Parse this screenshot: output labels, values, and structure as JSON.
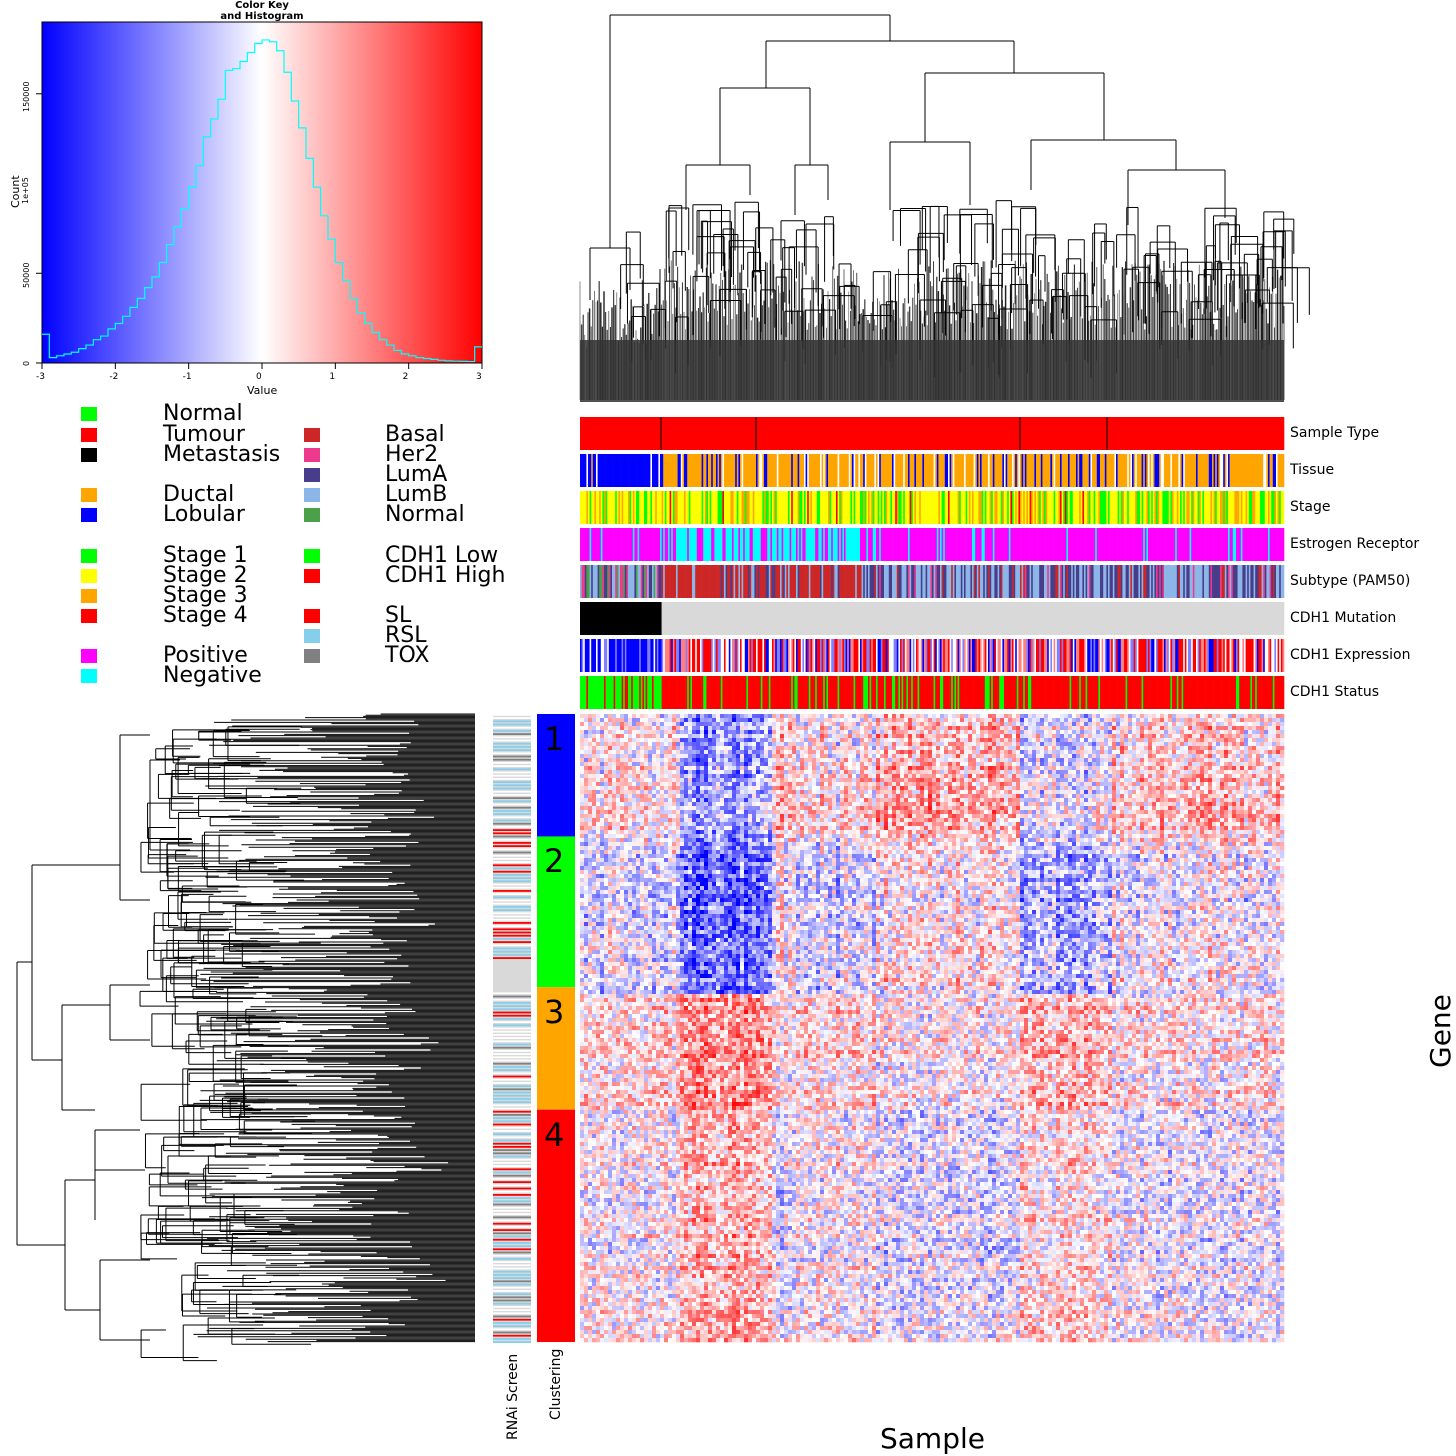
{
  "color_key": {
    "title_line1": "Color Key",
    "title_line2": "and Histogram",
    "xlabel": "Value",
    "ylabel_line1": "Count",
    "ylabel_line2": "1e+05",
    "x_ticks": [
      "-3",
      "-2",
      "-1",
      "0",
      "1",
      "2",
      "3"
    ],
    "y_ticks": [
      "0",
      "50000",
      "150000"
    ],
    "colors": {
      "low": "#0000ff",
      "mid": "#ffffff",
      "high": "#ff0000",
      "hist_line": "#00ffff"
    }
  },
  "legend": {
    "column1": [
      {
        "label": "Normal",
        "color": "#00ff00"
      },
      {
        "label": "Tumour",
        "color": "#ff0000"
      },
      {
        "label": "Metastasis",
        "color": "#000000"
      },
      {
        "label": "Ductal",
        "color": "#ffa500"
      },
      {
        "label": "Lobular",
        "color": "#0000ff"
      },
      {
        "label": "Stage 1",
        "color": "#00ff00"
      },
      {
        "label": "Stage 2",
        "color": "#ffff00"
      },
      {
        "label": "Stage 3",
        "color": "#ffa500"
      },
      {
        "label": "Stage 4",
        "color": "#ff0000"
      },
      {
        "label": "Positive",
        "color": "#ff00ff"
      },
      {
        "label": "Negative",
        "color": "#00ffff"
      }
    ],
    "column2": [
      {
        "label": "Basal",
        "color": "#cd2626"
      },
      {
        "label": "Her2",
        "color": "#ee3a8c"
      },
      {
        "label": "LumA",
        "color": "#483d8b"
      },
      {
        "label": "LumB",
        "color": "#8db6e8"
      },
      {
        "label": "Normal",
        "color": "#4aa14a"
      },
      {
        "label": "CDH1 Low",
        "color": "#00ff00"
      },
      {
        "label": "CDH1 High",
        "color": "#ff0000"
      },
      {
        "label": "SL",
        "color": "#ff0000"
      },
      {
        "label": "RSL",
        "color": "#87ceeb"
      },
      {
        "label": "TOX",
        "color": "#808080"
      }
    ]
  },
  "tracks": [
    {
      "label": "Sample Type"
    },
    {
      "label": "Tissue"
    },
    {
      "label": "Stage"
    },
    {
      "label": "Estrogen Receptor"
    },
    {
      "label": "Subtype (PAM50)"
    },
    {
      "label": "CDH1 Mutation"
    },
    {
      "label": "CDH1 Expression"
    },
    {
      "label": "CDH1 Status"
    }
  ],
  "side_labels": {
    "rnai": "RNAi Screen",
    "clustering": "Clustering",
    "sample": "Sample",
    "gene": "Gene"
  },
  "clusters": [
    {
      "label": "1",
      "color": "#0000ff",
      "fraction": 0.195
    },
    {
      "label": "2",
      "color": "#00ff00",
      "fraction": 0.24
    },
    {
      "label": "3",
      "color": "#ffa500",
      "fraction": 0.195
    },
    {
      "label": "4",
      "color": "#ff0000",
      "fraction": 0.37
    }
  ],
  "chart_data": {
    "type": "heatmap",
    "title": "",
    "xlabel": "Sample",
    "ylabel": "Gene",
    "color_scale": {
      "min": -3,
      "max": 3,
      "low": "#0000ff",
      "mid": "#ffffff",
      "high": "#ff0000"
    },
    "histogram": {
      "bins": [
        -3.0,
        -2.9,
        -2.8,
        -2.7,
        -2.6,
        -2.5,
        -2.4,
        -2.3,
        -2.2,
        -2.1,
        -2.0,
        -1.9,
        -1.8,
        -1.7,
        -1.6,
        -1.5,
        -1.4,
        -1.3,
        -1.2,
        -1.1,
        -1.0,
        -0.9,
        -0.8,
        -0.7,
        -0.6,
        -0.5,
        -0.4,
        -0.3,
        -0.2,
        -0.1,
        0.0,
        0.1,
        0.2,
        0.3,
        0.4,
        0.5,
        0.6,
        0.7,
        0.8,
        0.9,
        1.0,
        1.1,
        1.2,
        1.3,
        1.4,
        1.5,
        1.6,
        1.7,
        1.8,
        1.9,
        2.0,
        2.1,
        2.2,
        2.3,
        2.4,
        2.5,
        2.6,
        2.7,
        2.8,
        2.9
      ],
      "counts": [
        16000,
        3000,
        4000,
        5000,
        6000,
        8000,
        10000,
        13000,
        15000,
        19000,
        22000,
        26000,
        31000,
        36000,
        42000,
        48000,
        56000,
        66000,
        76000,
        86000,
        98000,
        110000,
        126000,
        136000,
        147000,
        163000,
        164000,
        168000,
        173000,
        178000,
        180000,
        179000,
        174000,
        162000,
        146000,
        131000,
        114000,
        98000,
        82000,
        69000,
        56000,
        46000,
        36000,
        28000,
        22000,
        17000,
        13000,
        10000,
        7000,
        5000,
        4000,
        3000,
        2500,
        2000,
        1500,
        1200,
        1000,
        900,
        800,
        9000
      ]
    }
  }
}
